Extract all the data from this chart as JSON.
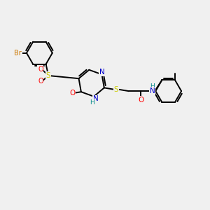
{
  "background_color": "#f0f0f0",
  "bond_color": "#000000",
  "atom_colors": {
    "Br": "#cc7700",
    "S": "#cccc00",
    "O": "#ff0000",
    "N": "#0000cc",
    "H": "#008888",
    "C": "#000000"
  }
}
